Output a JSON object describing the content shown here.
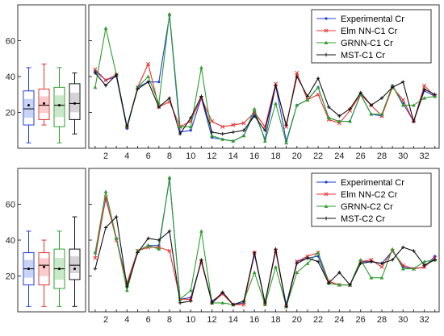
{
  "chart_data": [
    {
      "type": "line",
      "panel": "top",
      "x": [
        1,
        2,
        3,
        4,
        5,
        6,
        7,
        8,
        9,
        10,
        11,
        12,
        13,
        14,
        15,
        16,
        17,
        18,
        19,
        20,
        21,
        22,
        23,
        24,
        25,
        26,
        27,
        28,
        29,
        30,
        31,
        32,
        33
      ],
      "xticks": [
        "2",
        "4",
        "6",
        "8",
        "10",
        "12",
        "14",
        "16",
        "18",
        "20",
        "22",
        "24",
        "26",
        "28",
        "30",
        "32"
      ],
      "xlim": [
        0.4,
        33.4
      ],
      "ylim": [
        0,
        80
      ],
      "yticks": [
        "20",
        "40",
        "60"
      ],
      "legend_position": "top-right",
      "series": [
        {
          "name": "Experimental Cr",
          "color": "#1f3fd6",
          "marker": "dot",
          "values": [
            43,
            38,
            40,
            11,
            34,
            37,
            37,
            74,
            9,
            10,
            28,
            6,
            5,
            4,
            7,
            20,
            5,
            35,
            4,
            24,
            27,
            34,
            17,
            15,
            15,
            30,
            19,
            18,
            35,
            25,
            15,
            32,
            29
          ]
        },
        {
          "name": "Elm NN-C1 Cr",
          "color": "#e8312f",
          "marker": "x",
          "values": [
            44,
            38,
            41,
            12,
            34,
            47,
            23,
            26,
            12,
            15,
            28,
            15,
            12,
            13,
            14,
            20,
            12,
            36,
            12,
            42,
            27,
            30,
            16,
            14,
            21,
            30,
            24,
            18,
            34,
            27,
            15,
            35,
            29
          ]
        },
        {
          "name": "GRNN-C1 Cr",
          "color": "#2e9e2e",
          "marker": "triangle",
          "values": [
            34,
            67,
            41,
            12,
            34,
            40,
            25,
            75,
            12,
            12,
            45,
            7,
            5,
            4,
            7,
            22,
            4,
            25,
            3,
            24,
            27,
            34,
            17,
            15,
            15,
            30,
            19,
            19,
            35,
            24,
            24,
            28,
            29
          ]
        },
        {
          "name": "MST-C1 Cr",
          "color": "#111111",
          "marker": "plus",
          "values": [
            42,
            35,
            41,
            12,
            33,
            37,
            23,
            28,
            8,
            17,
            29,
            9,
            8,
            9,
            10,
            18,
            10,
            35,
            13,
            40,
            29,
            39,
            23,
            18,
            22,
            31,
            24,
            28,
            34,
            37,
            15,
            33,
            30
          ]
        }
      ],
      "boxplots": [
        {
          "color": "#1f3fd6",
          "fill": "#c9d3f4",
          "min": 3,
          "q1": 13,
          "median": 22,
          "q3": 32,
          "max": 45,
          "mean": 24
        },
        {
          "color": "#e8312f",
          "fill": "#f7cccc",
          "min": 13,
          "q1": 16,
          "median": 24,
          "q3": 33,
          "max": 47,
          "mean": 25
        },
        {
          "color": "#2e9e2e",
          "fill": "#c9e8c9",
          "min": 3,
          "q1": 12,
          "median": 24,
          "q3": 34,
          "max": 45,
          "mean": 24
        },
        {
          "color": "#111111",
          "fill": "#d4d4d4",
          "min": 8,
          "q1": 16,
          "median": 25,
          "q3": 36,
          "max": 42,
          "mean": 25
        }
      ]
    },
    {
      "type": "line",
      "panel": "bottom",
      "x": [
        1,
        2,
        3,
        4,
        5,
        6,
        7,
        8,
        9,
        10,
        11,
        12,
        13,
        14,
        15,
        16,
        17,
        18,
        19,
        20,
        21,
        22,
        23,
        24,
        25,
        26,
        27,
        28,
        29,
        30,
        31,
        32,
        33
      ],
      "xticks": [
        "2",
        "4",
        "6",
        "8",
        "10",
        "12",
        "14",
        "16",
        "18",
        "20",
        "22",
        "24",
        "26",
        "28",
        "30",
        "32"
      ],
      "xlim": [
        0.4,
        33.4
      ],
      "ylim": [
        0,
        80
      ],
      "yticks": [
        "20",
        "40",
        "60"
      ],
      "legend_position": "top-right",
      "series": [
        {
          "name": "Experimental Cr",
          "color": "#1f3fd6",
          "marker": "dot",
          "values": [
            33,
            63,
            41,
            16,
            34,
            37,
            37,
            74,
            7,
            8,
            28,
            6,
            10,
            4,
            5,
            32,
            5,
            34,
            4,
            28,
            30,
            31,
            16,
            15,
            15,
            28,
            28,
            27,
            34,
            25,
            24,
            25,
            31
          ]
        },
        {
          "name": "Elm NN-C2 Cr",
          "color": "#e8312f",
          "marker": "x",
          "values": [
            30,
            64,
            40,
            16,
            34,
            36,
            36,
            34,
            7,
            7,
            28,
            5,
            10,
            4,
            4,
            33,
            5,
            34,
            3,
            28,
            31,
            33,
            17,
            15,
            15,
            28,
            29,
            25,
            34,
            26,
            24,
            25,
            30
          ]
        },
        {
          "name": "GRNN-C2 Cr",
          "color": "#2e9e2e",
          "marker": "triangle",
          "values": [
            33,
            67,
            41,
            12,
            34,
            37,
            35,
            75,
            7,
            12,
            45,
            5,
            5,
            4,
            6,
            22,
            4,
            25,
            3,
            22,
            27,
            33,
            16,
            15,
            15,
            29,
            19,
            19,
            35,
            24,
            24,
            28,
            29
          ]
        },
        {
          "name": "MST-C2 Cr",
          "color": "#111111",
          "marker": "plus",
          "values": [
            24,
            47,
            53,
            14,
            33,
            41,
            40,
            45,
            5,
            6,
            29,
            5,
            11,
            4,
            6,
            33,
            5,
            35,
            3,
            27,
            30,
            28,
            16,
            22,
            15,
            27,
            28,
            27,
            29,
            36,
            34,
            26,
            29
          ]
        }
      ],
      "boxplots": [
        {
          "color": "#1f3fd6",
          "fill": "#c9d3f4",
          "min": 3,
          "q1": 15,
          "median": 24,
          "q3": 33,
          "max": 45,
          "mean": 24
        },
        {
          "color": "#e8312f",
          "fill": "#f7cccc",
          "min": 3,
          "q1": 15,
          "median": 26,
          "q3": 33,
          "max": 40,
          "mean": 25
        },
        {
          "color": "#2e9e2e",
          "fill": "#c9e8c9",
          "min": 3,
          "q1": 13,
          "median": 24,
          "q3": 35,
          "max": 45,
          "mean": 24
        },
        {
          "color": "#111111",
          "fill": "#d4d4d4",
          "min": 3,
          "q1": 18,
          "median": 26,
          "q3": 35,
          "max": 53,
          "mean": 24
        }
      ]
    }
  ]
}
